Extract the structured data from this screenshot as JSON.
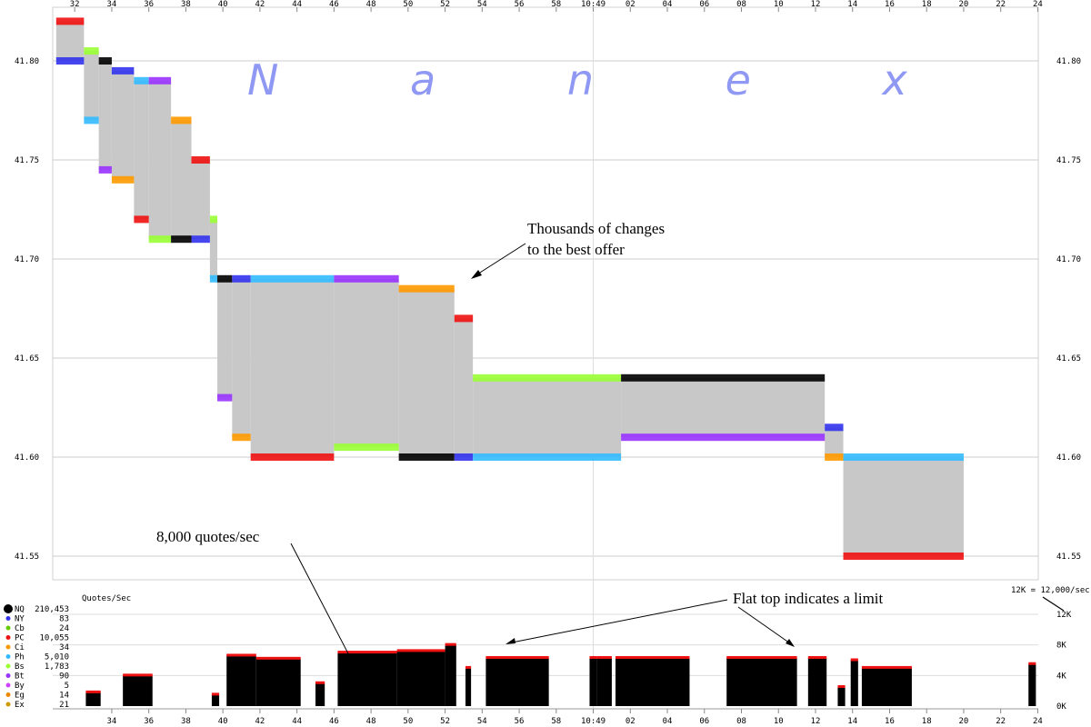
{
  "watermark": "N a n e x",
  "chart_data": [
    {
      "type": "area",
      "title": "",
      "xlabel": "",
      "ylabel": "",
      "x_tick_labels": [
        "32",
        "34",
        "36",
        "38",
        "40",
        "42",
        "44",
        "46",
        "48",
        "50",
        "52",
        "54",
        "56",
        "58",
        "10:49",
        "02",
        "04",
        "06",
        "08",
        "10",
        "12",
        "14",
        "16",
        "18",
        "20",
        "22",
        "24"
      ],
      "y_tick_labels": [
        "41.80",
        "41.75",
        "41.70",
        "41.65",
        "41.60",
        "41.55"
      ],
      "ylim": [
        41.53,
        41.825
      ],
      "x_unit": "seconds (10:48:31 - 10:49:25)",
      "grid": true,
      "series": [
        {
          "name": "",
          "bid_offer_bands": [
            {
              "x": [
                31.0,
                32.5
              ],
              "bid": 41.8,
              "ask": 41.82
            },
            {
              "x": [
                32.5,
                33.3
              ],
              "bid": 41.77,
              "ask": 41.805
            },
            {
              "x": [
                33.3,
                34.0
              ],
              "bid": 41.745,
              "ask": 41.8
            },
            {
              "x": [
                34.0,
                35.2
              ],
              "bid": 41.74,
              "ask": 41.795
            },
            {
              "x": [
                35.2,
                36.0
              ],
              "bid": 41.72,
              "ask": 41.79
            },
            {
              "x": [
                36.0,
                37.2
              ],
              "bid": 41.71,
              "ask": 41.79
            },
            {
              "x": [
                37.2,
                38.3
              ],
              "bid": 41.71,
              "ask": 41.77
            },
            {
              "x": [
                38.3,
                39.3
              ],
              "bid": 41.71,
              "ask": 41.75
            },
            {
              "x": [
                39.3,
                39.7
              ],
              "bid": 41.69,
              "ask": 41.72
            },
            {
              "x": [
                39.7,
                40.5
              ],
              "bid": 41.63,
              "ask": 41.69
            },
            {
              "x": [
                40.5,
                41.5
              ],
              "bid": 41.61,
              "ask": 41.69
            },
            {
              "x": [
                41.5,
                46.0
              ],
              "bid": 41.6,
              "ask": 41.69
            },
            {
              "x": [
                46.0,
                49.5
              ],
              "bid": 41.605,
              "ask": 41.69
            },
            {
              "x": [
                49.5,
                52.5
              ],
              "bid": 41.6,
              "ask": 41.685
            },
            {
              "x": [
                52.5,
                53.5
              ],
              "bid": 41.6,
              "ask": 41.67
            },
            {
              "x": [
                53.5,
                61.5
              ],
              "bid": 41.6,
              "ask": 41.64
            },
            {
              "x": [
                61.5,
                72.5
              ],
              "bid": 41.61,
              "ask": 41.64
            },
            {
              "x": [
                72.5,
                73.5
              ],
              "bid": 41.6,
              "ask": 41.615
            },
            {
              "x": [
                73.5,
                80.0
              ],
              "bid": 41.55,
              "ask": 41.6
            }
          ]
        }
      ]
    },
    {
      "type": "bar",
      "title": "Quotes/Sec",
      "y_tick_labels": [
        "12K",
        "8K",
        "4K",
        "0K"
      ],
      "ylim": [
        0,
        12000
      ],
      "scale_note": "12K = 12,000/sec",
      "x_tick_labels": [
        "34",
        "36",
        "38",
        "40",
        "42",
        "44",
        "46",
        "48",
        "50",
        "52",
        "54",
        "56",
        "58",
        "10:49",
        "02",
        "04",
        "06",
        "08",
        "10",
        "12",
        "14",
        "16",
        "18",
        "20",
        "22",
        "24"
      ],
      "series": [
        {
          "name": "NQ",
          "segments": [
            {
              "x": [
                32.6,
                33.4
              ],
              "value": 1800
            },
            {
              "x": [
                34.6,
                36.2
              ],
              "value": 4000
            },
            {
              "x": [
                39.4,
                39.8
              ],
              "value": 1500
            },
            {
              "x": [
                40.2,
                41.8
              ],
              "value": 6600
            },
            {
              "x": [
                41.8,
                44.2
              ],
              "value": 6200
            },
            {
              "x": [
                45.0,
                45.5
              ],
              "value": 3000
            },
            {
              "x": [
                46.2,
                49.4
              ],
              "value": 7000
            },
            {
              "x": [
                49.4,
                52.0
              ],
              "value": 7200
            },
            {
              "x": [
                52.0,
                52.6
              ],
              "value": 8000
            },
            {
              "x": [
                53.1,
                53.4
              ],
              "value": 5000
            },
            {
              "x": [
                54.2,
                57.6
              ],
              "value": 6300
            },
            {
              "x": [
                59.8,
                60.2
              ],
              "value": 6300
            },
            {
              "x": [
                60.2,
                61.0
              ],
              "value": 6300
            },
            {
              "x": [
                61.2,
                65.2
              ],
              "value": 6300
            },
            {
              "x": [
                67.2,
                71.0
              ],
              "value": 6300
            },
            {
              "x": [
                71.6,
                72.6
              ],
              "value": 6300
            },
            {
              "x": [
                73.2,
                73.6
              ],
              "value": 2500
            },
            {
              "x": [
                73.9,
                74.3
              ],
              "value": 6000
            },
            {
              "x": [
                74.5,
                77.2
              ],
              "value": 5000
            },
            {
              "x": [
                83.5,
                83.9
              ],
              "value": 5500
            }
          ]
        }
      ],
      "legend": [
        {
          "code": "NQ",
          "count": "210,453",
          "color": "#000000"
        },
        {
          "code": "NY",
          "count": "83",
          "color": "#3333ee"
        },
        {
          "code": "Cb",
          "count": "24",
          "color": "#66cc00"
        },
        {
          "code": "PC",
          "count": "10,055",
          "color": "#ee1111"
        },
        {
          "code": "Ci",
          "count": "34",
          "color": "#ff9900"
        },
        {
          "code": "Ph",
          "count": "5,010",
          "color": "#33bbff"
        },
        {
          "code": "Bs",
          "count": "1,783",
          "color": "#99ff33"
        },
        {
          "code": "Bt",
          "count": "90",
          "color": "#9933ff"
        },
        {
          "code": "By",
          "count": "5",
          "color": "#cc44ff"
        },
        {
          "code": "Eg",
          "count": "14",
          "color": "#ee8800"
        },
        {
          "code": "Ex",
          "count": "21",
          "color": "#cc9900"
        }
      ]
    }
  ],
  "annotations": {
    "best_offer_line1": "Thousands of changes",
    "best_offer_line2": "to the best offer",
    "quotes_rate": "8,000 quotes/sec",
    "flat_top": "Flat top indicates a limit"
  },
  "colors": {
    "fill": "#c8c8c8",
    "ask_top": "#3333ee",
    "grid": "#cccccc",
    "series_colors": [
      "#ee1111",
      "#99ff33",
      "#000000",
      "#3333ee",
      "#33bbff",
      "#9933ff",
      "#ff9900"
    ]
  }
}
